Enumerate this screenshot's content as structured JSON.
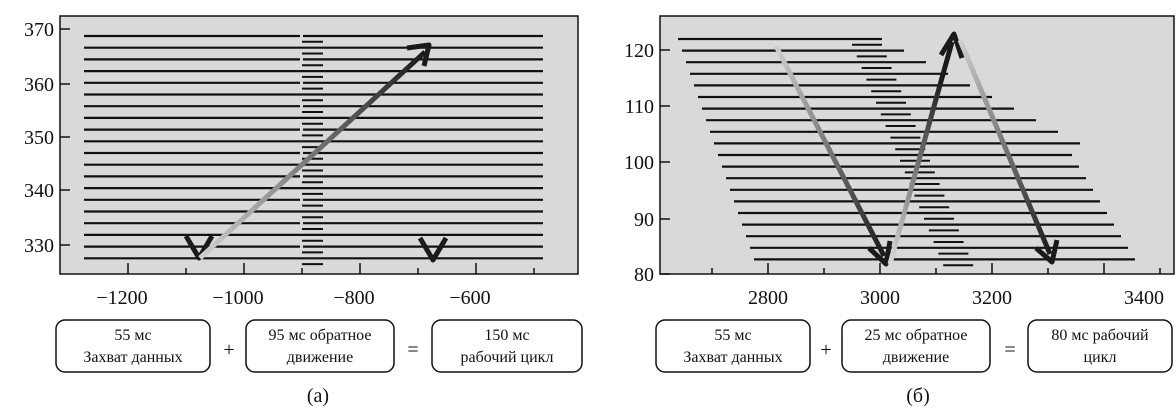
{
  "panels": [
    {
      "id": "a",
      "caption": "(а)",
      "y_ticks": [
        "370",
        "360",
        "350",
        "340",
        "330"
      ],
      "x_ticks": [
        "−1200",
        "−1000",
        "−800",
        "−600"
      ],
      "equation": {
        "box1": [
          "55 мс",
          "Захват данных"
        ],
        "op1": "+",
        "box2": [
          "95 мс обратное",
          "движение"
        ],
        "op2": "=",
        "box3": [
          "150 мс",
          "рабочий цикл"
        ]
      }
    },
    {
      "id": "b",
      "caption": "(б)",
      "y_ticks": [
        "120",
        "110",
        "100",
        "90",
        "80"
      ],
      "x_ticks": [
        "2800",
        "3000",
        "3200",
        "3400"
      ],
      "equation": {
        "box1": [
          "55 мс",
          "Захват данных"
        ],
        "op1": "+",
        "box2": [
          "25 мс обратное",
          "движение"
        ],
        "op2": "=",
        "box3": [
          "80 мс рабочий",
          "цикл"
        ]
      }
    }
  ]
}
